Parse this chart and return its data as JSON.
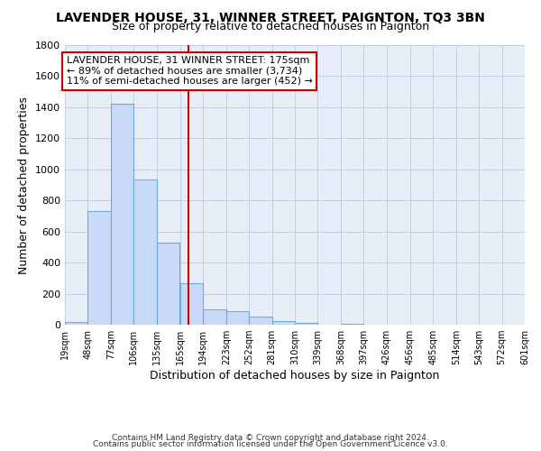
{
  "title": "LAVENDER HOUSE, 31, WINNER STREET, PAIGNTON, TQ3 3BN",
  "subtitle": "Size of property relative to detached houses in Paignton",
  "xlabel": "Distribution of detached houses by size in Paignton",
  "ylabel": "Number of detached properties",
  "footnote1": "Contains HM Land Registry data © Crown copyright and database right 2024.",
  "footnote2": "Contains public sector information licensed under the Open Government Licence v3.0.",
  "bin_labels": [
    "19sqm",
    "48sqm",
    "77sqm",
    "106sqm",
    "135sqm",
    "165sqm",
    "194sqm",
    "223sqm",
    "252sqm",
    "281sqm",
    "310sqm",
    "339sqm",
    "368sqm",
    "397sqm",
    "426sqm",
    "456sqm",
    "485sqm",
    "514sqm",
    "543sqm",
    "572sqm",
    "601sqm"
  ],
  "bar_values": [
    20,
    730,
    1420,
    935,
    530,
    270,
    100,
    90,
    50,
    25,
    10,
    0,
    5,
    0,
    0,
    0,
    0,
    0,
    0,
    0
  ],
  "bar_color": "#c9daf8",
  "bar_edge_color": "#6fa8dc",
  "vline_x_label": "165sqm",
  "vline_color": "#cc0000",
  "bin_edges": [
    19,
    48,
    77,
    106,
    135,
    165,
    194,
    223,
    252,
    281,
    310,
    339,
    368,
    397,
    426,
    456,
    485,
    514,
    543,
    572,
    601
  ],
  "annotation_title": "LAVENDER HOUSE, 31 WINNER STREET: 175sqm",
  "annotation_line1": "← 89% of detached houses are smaller (3,734)",
  "annotation_line2": "11% of semi-detached houses are larger (452) →",
  "annotation_box_color": "#ffffff",
  "annotation_box_edge": "#cc0000",
  "ylim": [
    0,
    1800
  ],
  "yticks": [
    0,
    200,
    400,
    600,
    800,
    1000,
    1200,
    1400,
    1600,
    1800
  ],
  "background_color": "#ffffff",
  "plot_bg_color": "#e8eef8",
  "grid_color": "#c4cce0"
}
